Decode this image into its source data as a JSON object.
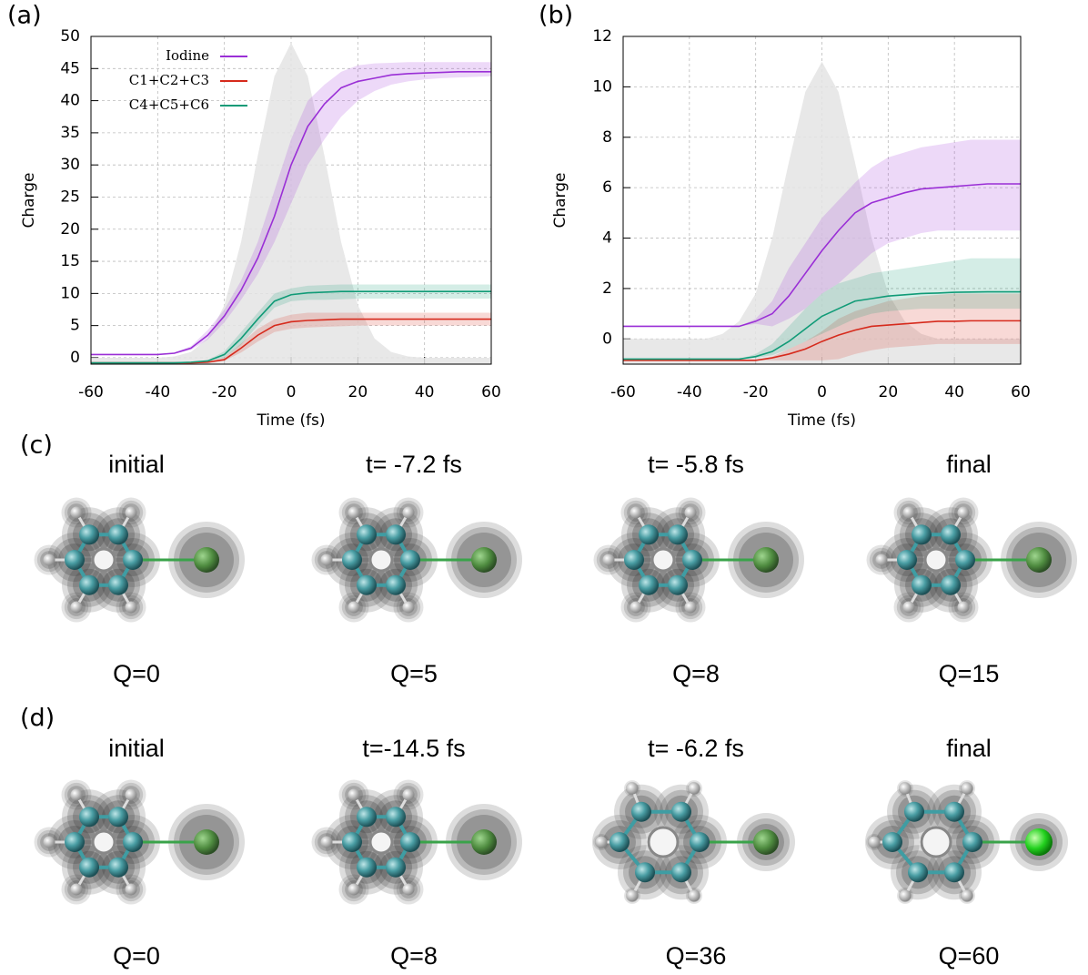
{
  "chart_data": [
    {
      "type": "line",
      "label": "(a)",
      "xlabel": "Time (fs)",
      "ylabel": "Charge",
      "x": [
        -60,
        -55,
        -50,
        -45,
        -40,
        -35,
        -30,
        -25,
        -20,
        -15,
        -10,
        -5,
        0,
        5,
        10,
        15,
        20,
        25,
        30,
        35,
        40,
        45,
        50,
        55,
        60
      ],
      "xlim": [
        -60,
        60
      ],
      "xticks": [
        -60,
        -40,
        -20,
        0,
        20,
        40,
        60
      ],
      "ylim": [
        -1,
        50
      ],
      "yticks": [
        0,
        5,
        10,
        15,
        20,
        25,
        30,
        35,
        40,
        45,
        50
      ],
      "grid": true,
      "legend": "upper-left",
      "pulse": {
        "color": "#e4e4e4",
        "values": [
          0,
          0,
          0,
          0,
          0,
          0.2,
          0.9,
          3,
          8.2,
          18,
          31.4,
          43.8,
          49,
          43.8,
          31.4,
          18,
          8.2,
          3,
          0.9,
          0.2,
          0,
          0,
          0,
          0,
          0
        ]
      },
      "series": [
        {
          "name": "Iodine",
          "color": "#9a2fd6",
          "values": [
            0.5,
            0.5,
            0.5,
            0.5,
            0.5,
            0.7,
            1.5,
            3.5,
            6.5,
            10.5,
            15.5,
            22,
            30,
            36,
            39.5,
            42,
            43,
            43.5,
            44,
            44.2,
            44.3,
            44.4,
            44.5,
            44.5,
            44.5
          ],
          "low": [
            0.5,
            0.5,
            0.5,
            0.5,
            0.5,
            0.6,
            1.2,
            2.8,
            5.5,
            9,
            13,
            18,
            24,
            30,
            34,
            37.5,
            40,
            41.5,
            42.5,
            43,
            43.3,
            43.5,
            43.6,
            43.7,
            43.8
          ],
          "high": [
            0.5,
            0.5,
            0.5,
            0.5,
            0.5,
            0.8,
            1.8,
            4.3,
            7.5,
            12,
            18,
            26,
            34,
            40,
            42.5,
            44.5,
            45.5,
            45.8,
            45.9,
            46,
            46,
            46,
            46,
            46,
            46
          ]
        },
        {
          "name": "C1+C2+C3",
          "color": "#d62a1c",
          "values": [
            -0.8,
            -0.8,
            -0.8,
            -0.8,
            -0.8,
            -0.8,
            -0.8,
            -0.7,
            -0.3,
            1.5,
            3.5,
            5,
            5.6,
            5.8,
            5.9,
            6,
            6,
            6,
            6,
            6,
            6,
            6,
            6,
            6,
            6
          ],
          "low": [
            -0.8,
            -0.8,
            -0.8,
            -0.8,
            -0.8,
            -0.8,
            -0.8,
            -0.8,
            -0.5,
            0.8,
            2.5,
            4,
            4.5,
            4.7,
            4.8,
            4.9,
            5,
            5,
            5,
            5,
            5,
            5,
            5,
            5,
            5
          ],
          "high": [
            -0.8,
            -0.8,
            -0.8,
            -0.8,
            -0.8,
            -0.8,
            -0.8,
            -0.6,
            0,
            2.2,
            4.5,
            6,
            6.7,
            7,
            7,
            7,
            7,
            7,
            7,
            7,
            7,
            7,
            7,
            7,
            7
          ]
        },
        {
          "name": "C4+C5+C6",
          "color": "#109b77",
          "values": [
            -0.8,
            -0.8,
            -0.8,
            -0.8,
            -0.8,
            -0.8,
            -0.7,
            -0.5,
            0.5,
            3,
            6,
            8.8,
            9.8,
            10.1,
            10.2,
            10.3,
            10.3,
            10.3,
            10.3,
            10.3,
            10.3,
            10.3,
            10.3,
            10.3,
            10.3
          ],
          "low": [
            -0.8,
            -0.8,
            -0.8,
            -0.8,
            -0.8,
            -0.8,
            -0.7,
            -0.6,
            0,
            2,
            5,
            7.8,
            8.8,
            9,
            9,
            9.1,
            9.2,
            9.2,
            9.2,
            9.2,
            9.2,
            9.2,
            9.2,
            9.2,
            9.2
          ],
          "high": [
            -0.8,
            -0.8,
            -0.8,
            -0.8,
            -0.8,
            -0.8,
            -0.7,
            -0.4,
            1,
            4,
            7,
            10,
            10.8,
            11.2,
            11.3,
            11.4,
            11.4,
            11.4,
            11.4,
            11.4,
            11.4,
            11.4,
            11.4,
            11.4,
            11.4
          ]
        }
      ]
    },
    {
      "type": "line",
      "label": "(b)",
      "xlabel": "Time (fs)",
      "ylabel": "Charge",
      "x": [
        -60,
        -55,
        -50,
        -45,
        -40,
        -35,
        -30,
        -25,
        -20,
        -15,
        -10,
        -5,
        0,
        5,
        10,
        15,
        20,
        25,
        30,
        35,
        40,
        45,
        50,
        55,
        60
      ],
      "xlim": [
        -60,
        60
      ],
      "xticks": [
        -60,
        -40,
        -20,
        0,
        20,
        40,
        60
      ],
      "ylim": [
        -1,
        12
      ],
      "yticks": [
        0,
        2,
        4,
        6,
        8,
        10,
        12
      ],
      "grid": true,
      "pulse": {
        "color": "#e4e4e4",
        "values": [
          0,
          0,
          0,
          0,
          0,
          0,
          0.2,
          0.7,
          1.8,
          4,
          7,
          9.8,
          11,
          9.8,
          7,
          4,
          1.8,
          0.7,
          0.2,
          0,
          0,
          0,
          0,
          0,
          0
        ]
      },
      "series": [
        {
          "color": "#9a2fd6",
          "values": [
            0.5,
            0.5,
            0.5,
            0.5,
            0.5,
            0.5,
            0.5,
            0.5,
            0.7,
            1,
            1.7,
            2.6,
            3.5,
            4.3,
            5,
            5.4,
            5.6,
            5.8,
            5.95,
            6,
            6.05,
            6.1,
            6.15,
            6.15,
            6.15
          ],
          "low": [
            0.5,
            0.5,
            0.5,
            0.5,
            0.5,
            0.5,
            0.5,
            0.5,
            0.6,
            0.5,
            0.8,
            1.2,
            1.8,
            2.2,
            2.8,
            3.4,
            3.8,
            4,
            4.2,
            4.3,
            4.3,
            4.3,
            4.3,
            4.3,
            4.3
          ],
          "high": [
            0.5,
            0.5,
            0.5,
            0.5,
            0.5,
            0.5,
            0.5,
            0.5,
            0.8,
            1.5,
            2.8,
            3.8,
            4.8,
            5.5,
            6.2,
            6.8,
            7.2,
            7.4,
            7.6,
            7.7,
            7.8,
            7.9,
            7.9,
            7.9,
            7.9
          ]
        },
        {
          "color": "#d62a1c",
          "values": [
            -0.85,
            -0.85,
            -0.85,
            -0.85,
            -0.85,
            -0.85,
            -0.85,
            -0.85,
            -0.85,
            -0.75,
            -0.6,
            -0.4,
            -0.1,
            0.15,
            0.35,
            0.5,
            0.55,
            0.6,
            0.65,
            0.7,
            0.7,
            0.72,
            0.72,
            0.72,
            0.72
          ],
          "low": [
            -0.85,
            -0.85,
            -0.85,
            -0.85,
            -0.85,
            -0.85,
            -0.85,
            -0.85,
            -0.85,
            -0.85,
            -0.85,
            -0.85,
            -0.85,
            -0.8,
            -0.6,
            -0.45,
            -0.35,
            -0.3,
            -0.25,
            -0.2,
            -0.2,
            -0.2,
            -0.2,
            -0.2,
            -0.2
          ],
          "high": [
            -0.85,
            -0.85,
            -0.85,
            -0.85,
            -0.85,
            -0.85,
            -0.85,
            -0.85,
            -0.85,
            -0.7,
            -0.4,
            -0.1,
            0.3,
            0.8,
            1.1,
            1.3,
            1.5,
            1.6,
            1.7,
            1.75,
            1.8,
            1.8,
            1.8,
            1.8,
            1.8
          ]
        },
        {
          "color": "#109b77",
          "values": [
            -0.8,
            -0.8,
            -0.8,
            -0.8,
            -0.8,
            -0.8,
            -0.8,
            -0.8,
            -0.7,
            -0.5,
            -0.1,
            0.4,
            0.9,
            1.2,
            1.5,
            1.6,
            1.7,
            1.75,
            1.8,
            1.82,
            1.85,
            1.86,
            1.87,
            1.87,
            1.87
          ],
          "low": [
            -0.8,
            -0.8,
            -0.8,
            -0.8,
            -0.8,
            -0.8,
            -0.8,
            -0.8,
            -0.75,
            -0.65,
            -0.4,
            -0.1,
            0.2,
            0.5,
            0.8,
            1,
            1.1,
            1.15,
            1.2,
            1.2,
            1.2,
            1.2,
            1.2,
            1.2,
            1.2
          ],
          "high": [
            -0.8,
            -0.8,
            -0.8,
            -0.8,
            -0.8,
            -0.8,
            -0.8,
            -0.8,
            -0.6,
            -0.2,
            0.5,
            1.2,
            1.8,
            2.2,
            2.4,
            2.6,
            2.7,
            2.8,
            2.9,
            3,
            3.1,
            3.2,
            3.2,
            3.2,
            3.2
          ]
        }
      ]
    }
  ],
  "rows": [
    {
      "label": "(c)",
      "frames": [
        {
          "title": "initial",
          "charge": "Q=0"
        },
        {
          "title": "t= -7.2 fs",
          "charge": "Q=5"
        },
        {
          "title": "t= -5.8 fs",
          "charge": "Q=8"
        },
        {
          "title": "final",
          "charge": "Q=15"
        }
      ]
    },
    {
      "label": "(d)",
      "frames": [
        {
          "title": "initial",
          "charge": "Q=0"
        },
        {
          "title": "t=-14.5 fs",
          "charge": "Q=8"
        },
        {
          "title": "t= -6.2 fs",
          "charge": "Q=36"
        },
        {
          "title": "final",
          "charge": "Q=60"
        }
      ]
    }
  ]
}
